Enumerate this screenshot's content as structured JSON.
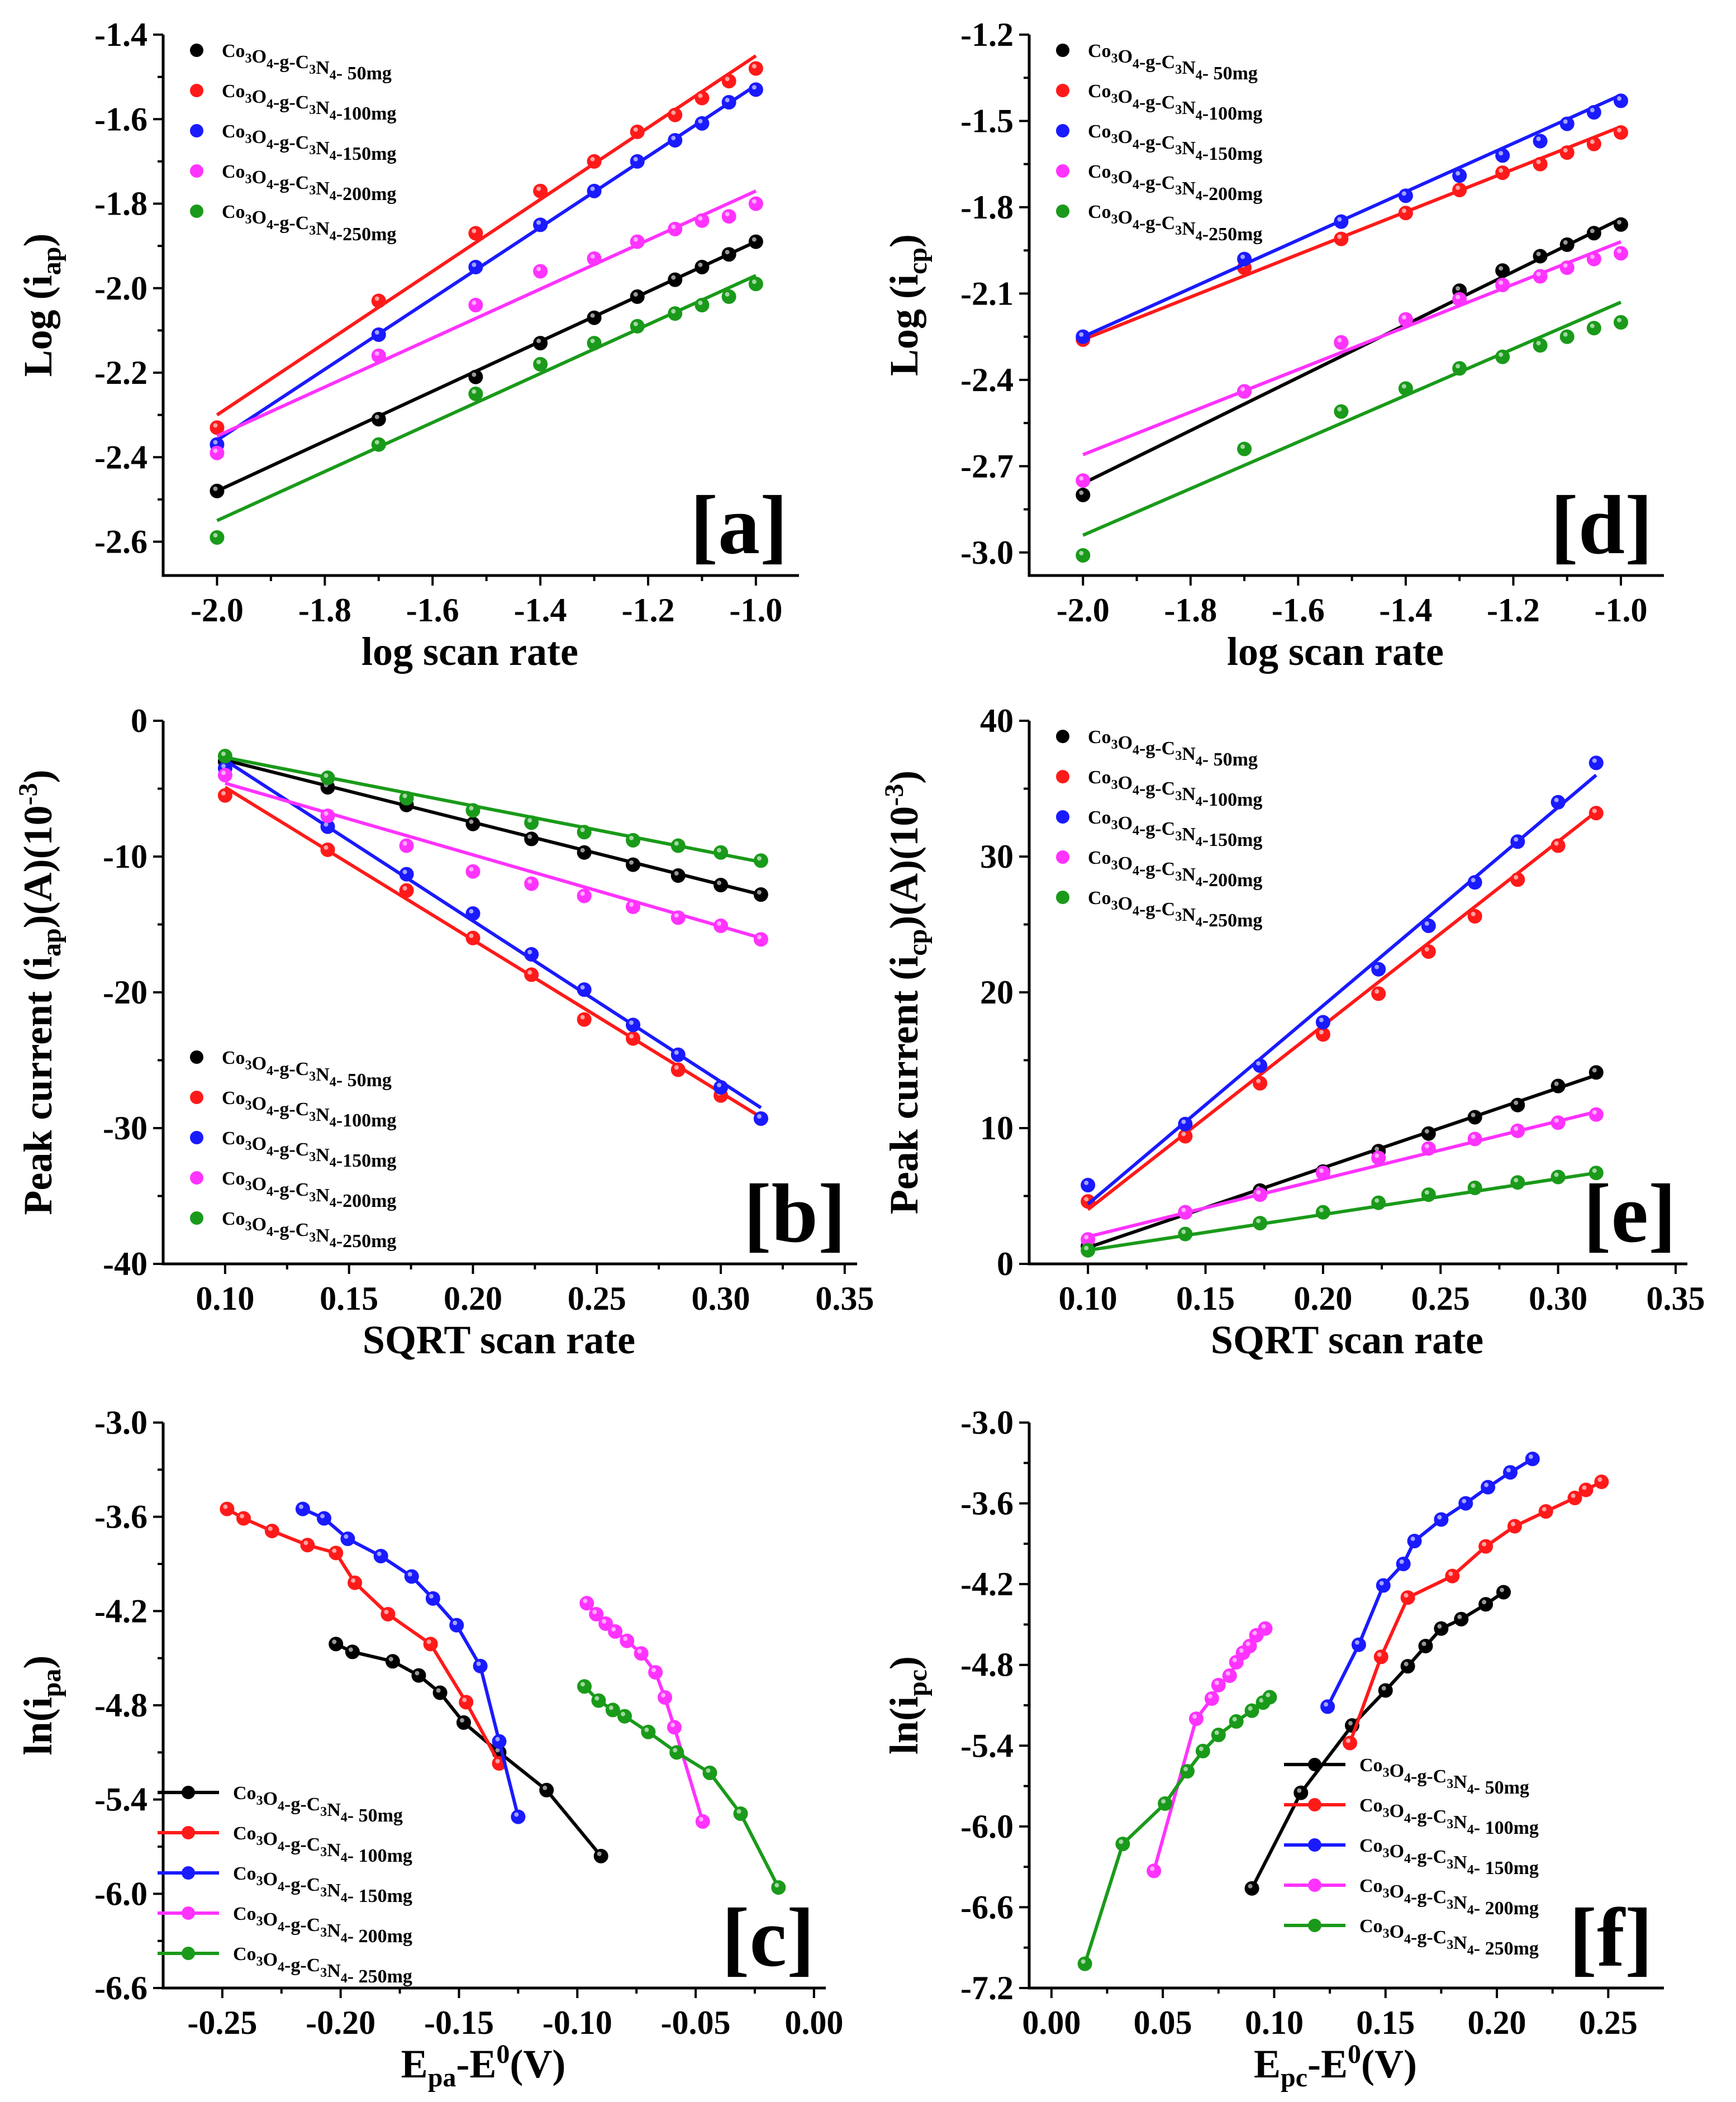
{
  "figure": {
    "legend_names": [
      "Co3O4-g-C3N4- 50mg",
      "Co3O4-g-C3N4-100mg",
      "Co3O4-g-C3N4-150mg",
      "Co3O4-g-C3N4-200mg",
      "Co3O4-g-C3N4-250mg"
    ],
    "colors": [
      "#000000",
      "#ff1a1a",
      "#1a1aff",
      "#ff33ff",
      "#1a9a1a"
    ]
  },
  "chart_data": [
    {
      "panel": "a",
      "label": "[a]",
      "type": "scatter",
      "fit": "linear",
      "xlabel": "log scan rate",
      "ylabel": "Log (iap)",
      "xlim": [
        -2.1,
        -0.92
      ],
      "ylim": [
        -2.68,
        -1.4
      ],
      "xticks": [
        -2.0,
        -1.8,
        -1.6,
        -1.4,
        -1.2,
        -1.0
      ],
      "xtick_labels": [
        "-2.0",
        "-1.8",
        "-1.6",
        "-1.4",
        "-1.2",
        "-1.0"
      ],
      "yticks": [
        -2.6,
        -2.4,
        -2.2,
        -2.0,
        -1.8,
        -1.6,
        -1.4
      ],
      "ytick_labels": [
        "-2.6",
        "-2.4",
        "-2.2",
        "-2.0",
        "-1.8",
        "-1.6",
        "-1.4"
      ],
      "legend_placement": "top-left",
      "x": [
        -2.0,
        -1.7,
        -1.52,
        -1.4,
        -1.3,
        -1.22,
        -1.15,
        -1.1,
        -1.05,
        -1.0
      ],
      "series": [
        {
          "name": "Co3O4-g-C3N4- 50mg",
          "values": [
            -2.48,
            -2.31,
            -2.21,
            -2.13,
            -2.07,
            -2.02,
            -1.98,
            -1.95,
            -1.92,
            -1.89
          ],
          "fit": [
            -2.48,
            -1.89
          ]
        },
        {
          "name": "Co3O4-g-C3N4-100mg",
          "values": [
            -2.33,
            -2.03,
            -1.87,
            -1.77,
            -1.7,
            -1.63,
            -1.59,
            -1.55,
            -1.51,
            -1.48
          ],
          "fit": [
            -2.3,
            -1.45
          ]
        },
        {
          "name": "Co3O4-g-C3N4-150mg",
          "values": [
            -2.37,
            -2.11,
            -1.95,
            -1.85,
            -1.77,
            -1.7,
            -1.65,
            -1.61,
            -1.56,
            -1.53
          ],
          "fit": [
            -2.36,
            -1.52
          ]
        },
        {
          "name": "Co3O4-g-C3N4-200mg",
          "values": [
            -2.39,
            -2.16,
            -2.04,
            -1.96,
            -1.93,
            -1.89,
            -1.86,
            -1.84,
            -1.83,
            -1.8
          ],
          "fit": [
            -2.35,
            -1.77
          ]
        },
        {
          "name": "Co3O4-g-C3N4-250mg",
          "values": [
            -2.59,
            -2.37,
            -2.25,
            -2.18,
            -2.13,
            -2.09,
            -2.06,
            -2.04,
            -2.02,
            -1.99
          ],
          "fit": [
            -2.55,
            -1.97
          ]
        }
      ]
    },
    {
      "panel": "d",
      "label": "[d]",
      "type": "scatter",
      "fit": "linear",
      "xlabel": "log scan rate",
      "ylabel": "Log (icp)",
      "xlim": [
        -2.1,
        -0.92
      ],
      "ylim": [
        -3.08,
        -1.2
      ],
      "xticks": [
        -2.0,
        -1.8,
        -1.6,
        -1.4,
        -1.2,
        -1.0
      ],
      "xtick_labels": [
        "-2.0",
        "-1.8",
        "-1.6",
        "-1.4",
        "-1.2",
        "-1.0"
      ],
      "yticks": [
        -3.0,
        -2.7,
        -2.4,
        -2.1,
        -1.8,
        -1.5,
        -1.2
      ],
      "ytick_labels": [
        "-3.0",
        "-2.7",
        "-2.4",
        "-2.1",
        "-1.8",
        "-1.5",
        "-1.2"
      ],
      "legend_placement": "top-left",
      "x": [
        -2.0,
        -1.7,
        -1.52,
        -1.4,
        -1.3,
        -1.22,
        -1.15,
        -1.1,
        -1.05,
        -1.0
      ],
      "series": [
        {
          "name": "Co3O4-g-C3N4- 50mg",
          "values": [
            -2.8,
            -2.44,
            -2.27,
            -2.19,
            -2.09,
            -2.02,
            -1.97,
            -1.93,
            -1.89,
            -1.86
          ],
          "fit": [
            -2.76,
            -1.84
          ]
        },
        {
          "name": "Co3O4-g-C3N4-100mg",
          "values": [
            -2.26,
            -2.01,
            -1.91,
            -1.82,
            -1.74,
            -1.68,
            -1.65,
            -1.61,
            -1.58,
            -1.54
          ],
          "fit": [
            -2.26,
            -1.52
          ]
        },
        {
          "name": "Co3O4-g-C3N4-150mg",
          "values": [
            -2.25,
            -1.98,
            -1.85,
            -1.76,
            -1.69,
            -1.62,
            -1.57,
            -1.51,
            -1.47,
            -1.43
          ],
          "fit": [
            -2.25,
            -1.41
          ]
        },
        {
          "name": "Co3O4-g-C3N4-200mg",
          "values": [
            -2.75,
            -2.44,
            -2.27,
            -2.19,
            -2.12,
            -2.07,
            -2.04,
            -2.01,
            -1.98,
            -1.96
          ],
          "fit": [
            -2.66,
            -1.92
          ]
        },
        {
          "name": "Co3O4-g-C3N4-250mg",
          "values": [
            -3.01,
            -2.64,
            -2.51,
            -2.43,
            -2.36,
            -2.32,
            -2.28,
            -2.25,
            -2.22,
            -2.2
          ],
          "fit": [
            -2.94,
            -2.13
          ]
        }
      ]
    },
    {
      "panel": "b",
      "label": "[b]",
      "type": "scatter",
      "fit": "linear",
      "xlabel": "SQRT scan rate",
      "ylabel": "Peak current (iap)(A)(10-3)",
      "xlim": [
        0.075,
        0.355
      ],
      "ylim": [
        -40,
        0
      ],
      "xticks": [
        0.1,
        0.15,
        0.2,
        0.25,
        0.3,
        0.35
      ],
      "xtick_labels": [
        "0.10",
        "0.15",
        "0.20",
        "0.25",
        "0.30",
        "0.35"
      ],
      "yticks": [
        -40,
        -30,
        -20,
        -10,
        0
      ],
      "ytick_labels": [
        "-40",
        "-30",
        "-20",
        "-10",
        "0"
      ],
      "legend_placement": "bottom-left",
      "x": [
        0.1,
        0.1414,
        0.1732,
        0.2,
        0.2236,
        0.2449,
        0.2646,
        0.2828,
        0.3,
        0.3162
      ],
      "series": [
        {
          "name": "Co3O4-g-C3N4- 50mg",
          "values": [
            -3.0,
            -4.9,
            -6.2,
            -7.6,
            -8.7,
            -9.7,
            -10.6,
            -11.4,
            -12.1,
            -12.8
          ],
          "fit": [
            -2.9,
            -12.8
          ]
        },
        {
          "name": "Co3O4-g-C3N4-100mg",
          "values": [
            -5.5,
            -9.5,
            -12.5,
            -16.0,
            -18.7,
            -22.0,
            -23.4,
            -25.7,
            -27.6,
            -29.3
          ],
          "fit": [
            -4.9,
            -29.2
          ]
        },
        {
          "name": "Co3O4-g-C3N4-150mg",
          "values": [
            -3.5,
            -7.8,
            -11.3,
            -14.2,
            -17.2,
            -19.8,
            -22.4,
            -24.6,
            -27.0,
            -29.3
          ],
          "fit": [
            -2.9,
            -28.5
          ]
        },
        {
          "name": "Co3O4-g-C3N4-200mg",
          "values": [
            -4.0,
            -7.0,
            -9.2,
            -11.1,
            -12.0,
            -12.9,
            -13.7,
            -14.5,
            -15.1,
            -16.1
          ],
          "fit": [
            -4.6,
            -16.0
          ]
        },
        {
          "name": "Co3O4-g-C3N4-250mg",
          "values": [
            -2.6,
            -4.2,
            -5.7,
            -6.6,
            -7.5,
            -8.2,
            -8.8,
            -9.2,
            -9.7,
            -10.3
          ],
          "fit": [
            -2.7,
            -10.4
          ]
        }
      ]
    },
    {
      "panel": "e",
      "label": "[e]",
      "type": "scatter",
      "fit": "linear",
      "xlabel": "SQRT scan rate",
      "ylabel": "Peak current (icp)(A)(10-3)",
      "xlim": [
        0.075,
        0.355
      ],
      "ylim": [
        0,
        40
      ],
      "xticks": [
        0.1,
        0.15,
        0.2,
        0.25,
        0.3,
        0.35
      ],
      "xtick_labels": [
        "0.10",
        "0.15",
        "0.20",
        "0.25",
        "0.30",
        "0.35"
      ],
      "yticks": [
        0,
        10,
        20,
        30,
        40
      ],
      "ytick_labels": [
        "0",
        "10",
        "20",
        "30",
        "40"
      ],
      "legend_placement": "top-left",
      "x": [
        0.1,
        0.1414,
        0.1732,
        0.2,
        0.2236,
        0.2449,
        0.2646,
        0.2828,
        0.3,
        0.3162
      ],
      "series": [
        {
          "name": "Co3O4-g-C3N4- 50mg",
          "values": [
            1.3,
            3.8,
            5.4,
            6.8,
            8.3,
            9.6,
            10.8,
            11.7,
            13.1,
            14.1
          ],
          "fit": [
            1.2,
            13.9
          ]
        },
        {
          "name": "Co3O4-g-C3N4-100mg",
          "values": [
            4.6,
            9.4,
            13.3,
            16.9,
            19.9,
            23.0,
            25.6,
            28.3,
            30.8,
            33.2
          ],
          "fit": [
            4.0,
            33.3
          ]
        },
        {
          "name": "Co3O4-g-C3N4-150mg",
          "values": [
            5.8,
            10.3,
            14.6,
            17.8,
            21.7,
            24.9,
            28.1,
            31.1,
            34.0,
            36.9
          ],
          "fit": [
            4.4,
            36.0
          ]
        },
        {
          "name": "Co3O4-g-C3N4-200mg",
          "values": [
            1.8,
            3.8,
            5.1,
            6.7,
            7.8,
            8.5,
            9.2,
            9.8,
            10.4,
            11.0
          ],
          "fit": [
            2.0,
            11.2
          ]
        },
        {
          "name": "Co3O4-g-C3N4-250mg",
          "values": [
            1.0,
            2.2,
            3.0,
            3.8,
            4.5,
            5.1,
            5.6,
            6.0,
            6.4,
            6.7
          ],
          "fit": [
            1.0,
            6.7
          ]
        }
      ]
    },
    {
      "panel": "c",
      "label": "[c]",
      "type": "line",
      "markers": true,
      "xlabel": "Epa-E0(V)",
      "ylabel": "ln(ipa)",
      "xlim": [
        -0.275,
        0.005
      ],
      "ylim": [
        -6.6,
        -3.0
      ],
      "xticks": [
        -0.25,
        -0.2,
        -0.15,
        -0.1,
        -0.05,
        0.0
      ],
      "xtick_labels": [
        "-0.25",
        "-0.20",
        "-0.15",
        "-0.10",
        "-0.05",
        "0.00"
      ],
      "yticks": [
        -6.6,
        -6.0,
        -5.4,
        -4.8,
        -4.2,
        -3.6,
        -3.0
      ],
      "ytick_labels": [
        "-6.6",
        "-6.0",
        "-5.4",
        "-4.8",
        "-4.2",
        "-3.6",
        "-3.0"
      ],
      "legend_placement": "bottom-left",
      "series": [
        {
          "name": "Co3O4-g-C3N4- 50mg",
          "x": [
            -0.202,
            -0.195,
            -0.178,
            -0.167,
            -0.158,
            -0.148,
            -0.133,
            -0.113,
            -0.09
          ],
          "values": [
            -4.41,
            -4.46,
            -4.52,
            -4.61,
            -4.72,
            -4.91,
            -5.1,
            -5.34,
            -5.76
          ]
        },
        {
          "name": "Co3O4-g-C3N4- 100mg",
          "x": [
            -0.248,
            -0.241,
            -0.229,
            -0.214,
            -0.202,
            -0.194,
            -0.18,
            -0.162,
            -0.147,
            -0.133
          ],
          "values": [
            -3.55,
            -3.61,
            -3.69,
            -3.78,
            -3.83,
            -4.02,
            -4.22,
            -4.41,
            -4.78,
            -5.17
          ]
        },
        {
          "name": "Co3O4-g-C3N4- 150mg",
          "x": [
            -0.216,
            -0.207,
            -0.197,
            -0.183,
            -0.17,
            -0.161,
            -0.151,
            -0.141,
            -0.133,
            -0.125
          ],
          "values": [
            -3.55,
            -3.61,
            -3.74,
            -3.85,
            -3.98,
            -4.12,
            -4.29,
            -4.55,
            -5.03,
            -5.51
          ]
        },
        {
          "name": "Co3O4-g-C3N4- 200mg",
          "x": [
            -0.096,
            -0.092,
            -0.088,
            -0.084,
            -0.079,
            -0.073,
            -0.067,
            -0.063,
            -0.059,
            -0.047
          ],
          "values": [
            -4.15,
            -4.22,
            -4.28,
            -4.33,
            -4.39,
            -4.47,
            -4.59,
            -4.75,
            -4.94,
            -5.54
          ]
        },
        {
          "name": "Co3O4-g-C3N4- 250mg",
          "x": [
            -0.097,
            -0.091,
            -0.085,
            -0.08,
            -0.07,
            -0.058,
            -0.044,
            -0.031,
            -0.015
          ],
          "values": [
            -4.68,
            -4.77,
            -4.83,
            -4.87,
            -4.97,
            -5.1,
            -5.23,
            -5.49,
            -5.96
          ]
        }
      ]
    },
    {
      "panel": "f",
      "label": "[f]",
      "type": "line",
      "markers": true,
      "xlabel": "Epc-E0(V)",
      "ylabel": "ln(ipc)",
      "xlim": [
        -0.01,
        0.275
      ],
      "ylim": [
        -7.2,
        -3.0
      ],
      "xticks": [
        0.0,
        0.05,
        0.1,
        0.15,
        0.2,
        0.25
      ],
      "xtick_labels": [
        "0.00",
        "0.05",
        "0.10",
        "0.15",
        "0.20",
        "0.25"
      ],
      "yticks": [
        -7.2,
        -6.6,
        -6.0,
        -5.4,
        -4.8,
        -4.2,
        -3.6,
        -3.0
      ],
      "ytick_labels": [
        "-7.2",
        "-6.6",
        "-6.0",
        "-5.4",
        "-4.8",
        "-4.2",
        "-3.6",
        "-3.0"
      ],
      "legend_placement": "bottom-right",
      "series": [
        {
          "name": "Co3O4-g-C3N4- 50mg",
          "x": [
            0.09,
            0.112,
            0.135,
            0.15,
            0.16,
            0.168,
            0.175,
            0.184,
            0.195,
            0.203
          ],
          "values": [
            -6.46,
            -5.75,
            -5.25,
            -4.99,
            -4.81,
            -4.66,
            -4.53,
            -4.46,
            -4.35,
            -4.26
          ]
        },
        {
          "name": "Co3O4-g-C3N4- 100mg",
          "x": [
            0.134,
            0.148,
            0.16,
            0.18,
            0.195,
            0.208,
            0.222,
            0.235,
            0.24,
            0.247
          ],
          "values": [
            -5.38,
            -4.74,
            -4.3,
            -4.14,
            -3.92,
            -3.77,
            -3.66,
            -3.56,
            -3.5,
            -3.44
          ]
        },
        {
          "name": "Co3O4-g-C3N4- 150mg",
          "x": [
            0.124,
            0.138,
            0.149,
            0.158,
            0.163,
            0.175,
            0.186,
            0.196,
            0.206,
            0.216
          ],
          "values": [
            -5.11,
            -4.65,
            -4.21,
            -4.05,
            -3.88,
            -3.72,
            -3.6,
            -3.48,
            -3.37,
            -3.27
          ]
        },
        {
          "name": "Co3O4-g-C3N4- 200mg",
          "x": [
            0.046,
            0.065,
            0.072,
            0.075,
            0.08,
            0.083,
            0.086,
            0.089,
            0.092,
            0.096
          ],
          "values": [
            -6.33,
            -5.2,
            -5.05,
            -4.95,
            -4.88,
            -4.78,
            -4.71,
            -4.66,
            -4.58,
            -4.53
          ]
        },
        {
          "name": "Co3O4-g-C3N4- 250mg",
          "x": [
            0.015,
            0.032,
            0.051,
            0.061,
            0.068,
            0.075,
            0.083,
            0.09,
            0.095,
            0.098
          ],
          "values": [
            -7.02,
            -6.13,
            -5.83,
            -5.59,
            -5.44,
            -5.32,
            -5.22,
            -5.14,
            -5.08,
            -5.04
          ]
        }
      ]
    }
  ]
}
